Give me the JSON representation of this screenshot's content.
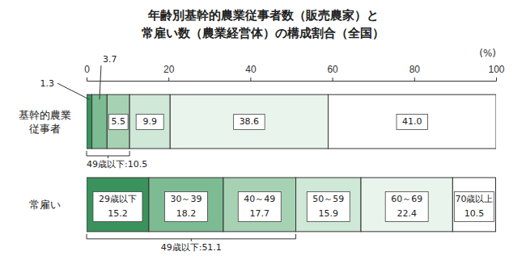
{
  "chart_data": {
    "type": "bar",
    "orientation": "horizontal",
    "stacked": true,
    "data_labels": true,
    "grid": false,
    "title": "年齢別基幹的農業従事者数（販売農家）と\n常雇い数（農業経営体）の構成割合（全国）",
    "xlabel": "(%)",
    "xlim": [
      0,
      100
    ],
    "xticks": [
      0,
      20,
      40,
      60,
      80,
      100
    ],
    "categories": [
      "基幹的農業従事者",
      "常雇い"
    ],
    "series": [
      {
        "name": "29歳以下",
        "color": "#3a935c",
        "values": [
          1.3,
          15.2
        ],
        "value_labels": [
          "1.3",
          "15.2"
        ]
      },
      {
        "name": "30～39",
        "color": "#7dbb93",
        "values": [
          3.7,
          18.2
        ],
        "value_labels": [
          "3.7",
          "18.2"
        ]
      },
      {
        "name": "40～49",
        "color": "#a6d2b3",
        "values": [
          5.5,
          17.7
        ],
        "value_labels": [
          "5.5",
          "17.7"
        ]
      },
      {
        "name": "50～59",
        "color": "#cfe8d7",
        "values": [
          9.9,
          15.9
        ],
        "value_labels": [
          "9.9",
          "15.9"
        ]
      },
      {
        "name": "60～69",
        "color": "#e9f4ec",
        "values": [
          38.6,
          22.4
        ],
        "value_labels": [
          "38.6",
          "22.4"
        ]
      },
      {
        "name": "70歳以上",
        "color": "#ffffff",
        "values": [
          41.0,
          10.5
        ],
        "value_labels": [
          "41.0",
          "10.5"
        ]
      }
    ],
    "annotations": [
      "49歳以下:10.5",
      "49歳以下:51.1"
    ]
  }
}
